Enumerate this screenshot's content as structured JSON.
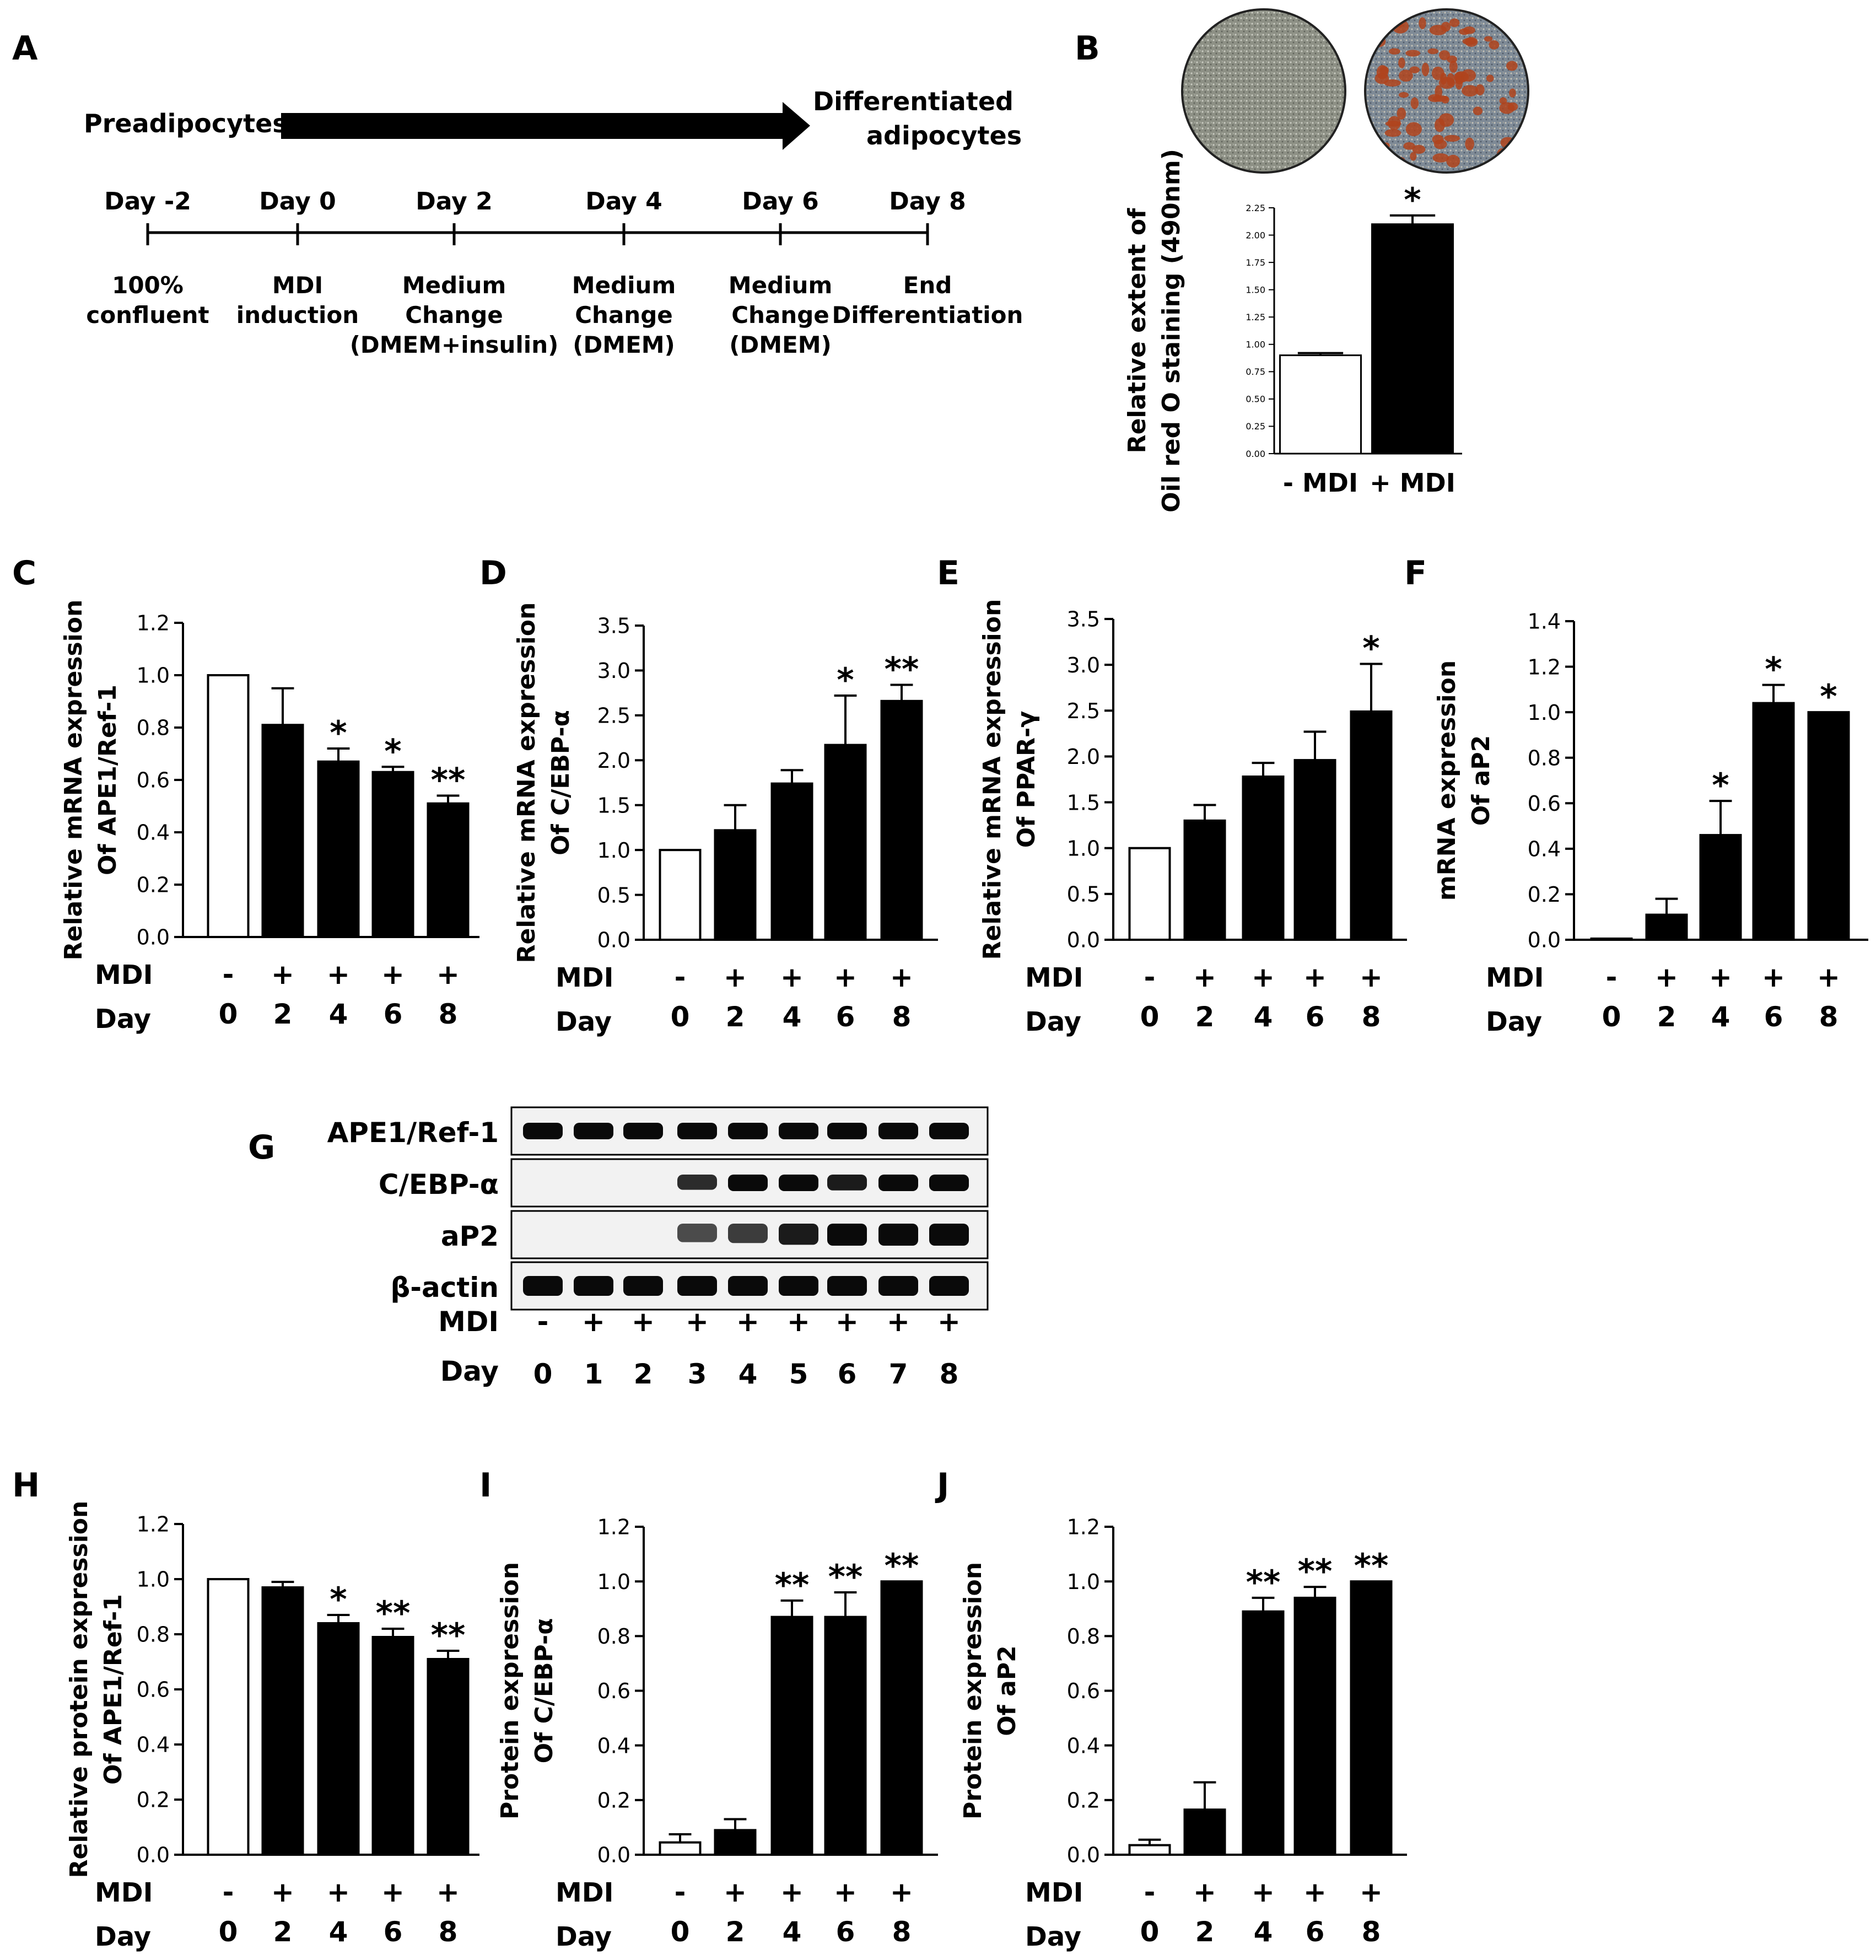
{
  "figure": {
    "panel_a": {
      "letter": "A",
      "arrow_start": "Preadipocytes",
      "arrow_end": [
        "Differentiated",
        "adipocytes"
      ],
      "timeline": [
        {
          "day": "Day -2",
          "lines": [
            "100%",
            "confluent"
          ]
        },
        {
          "day": "Day 0",
          "lines": [
            "MDI",
            "induction"
          ]
        },
        {
          "day": "Day 2",
          "lines": [
            "Medium",
            "Change",
            "(DMEM+insulin)"
          ]
        },
        {
          "day": "Day 4",
          "lines": [
            "Medium",
            "Change",
            "(DMEM)"
          ]
        },
        {
          "day": "Day 6",
          "lines": [
            "Medium",
            "Change",
            "(DMEM)"
          ]
        },
        {
          "day": "Day 8",
          "lines": [
            "End",
            "Differentiation"
          ]
        }
      ]
    },
    "panel_g": {
      "letter": "G",
      "rows": [
        "APE1/Ref-1",
        "C/EBP-α",
        "aP2",
        "β-actin"
      ],
      "mdi_label": "MDI",
      "day_label": "Day",
      "mdi": [
        "-",
        "+",
        "+",
        "+",
        "+",
        "+",
        "+",
        "+",
        "+"
      ],
      "days": [
        "0",
        "1",
        "2",
        "3",
        "4",
        "5",
        "6",
        "7",
        "8"
      ],
      "band_intensity": [
        [
          1,
          1,
          1,
          1,
          1,
          1,
          1,
          1,
          1
        ],
        [
          0,
          0,
          0,
          0.8,
          1,
          1,
          0.9,
          1,
          1
        ],
        [
          0,
          0,
          0,
          0.6,
          0.7,
          0.9,
          1,
          1,
          1
        ],
        [
          1,
          1,
          1,
          1,
          1,
          1,
          1,
          1,
          1
        ]
      ]
    },
    "panel_b_images": {
      "colors": {
        "minus_bg": "#8f9186",
        "plus_bg": "#8c8a8a",
        "stain": "#b0431c"
      }
    },
    "colors": {
      "bar_fill": "#000000",
      "control_fill": "#ffffff",
      "axis": "#000000"
    }
  },
  "chart_data": [
    {
      "id": "B",
      "type": "bar",
      "ylabel": [
        "Relative extent of",
        "Oil red O staining (490nm)"
      ],
      "categories": [
        "- MDI",
        "+ MDI"
      ],
      "values": [
        0.9,
        2.1
      ],
      "errors": [
        0.02,
        0.08
      ],
      "significance": [
        "",
        "*"
      ],
      "ylim": [
        0,
        2.25
      ],
      "yticks": [
        "0.00",
        "0.25",
        "0.50",
        "0.75",
        "1.00",
        "1.25",
        "1.50",
        "1.75",
        "2.00",
        "2.25"
      ],
      "ytick_values": [
        0,
        0.25,
        0.5,
        0.75,
        1.0,
        1.25,
        1.5,
        1.75,
        2.0,
        2.25
      ],
      "first_bar_white": true
    },
    {
      "id": "C",
      "type": "bar",
      "ylabel": [
        "Relative mRNA expression",
        "Of APE1/Ref-1"
      ],
      "mdi": [
        "-",
        "+",
        "+",
        "+",
        "+"
      ],
      "days": [
        "0",
        "2",
        "4",
        "6",
        "8"
      ],
      "values": [
        1.0,
        0.81,
        0.67,
        0.63,
        0.51
      ],
      "errors": [
        0,
        0.14,
        0.05,
        0.02,
        0.03
      ],
      "significance": [
        "",
        "",
        "*",
        "*",
        "**"
      ],
      "ylim": [
        0,
        1.2
      ],
      "yticks": [
        "0.0",
        "0.2",
        "0.4",
        "0.6",
        "0.8",
        "1.0",
        "1.2"
      ],
      "ytick_values": [
        0,
        0.2,
        0.4,
        0.6,
        0.8,
        1.0,
        1.2
      ],
      "first_bar_white": true
    },
    {
      "id": "D",
      "type": "bar",
      "ylabel": [
        "Relative mRNA expression",
        "Of C/EBP-α"
      ],
      "mdi": [
        "-",
        "+",
        "+",
        "+",
        "+"
      ],
      "days": [
        "0",
        "2",
        "4",
        "6",
        "8"
      ],
      "values": [
        1.0,
        1.22,
        1.74,
        2.17,
        2.66
      ],
      "errors": [
        0,
        0.28,
        0.15,
        0.55,
        0.18
      ],
      "significance": [
        "",
        "",
        "",
        "*",
        "**"
      ],
      "ylim": [
        0,
        3.5
      ],
      "yticks": [
        "0.0",
        "0.5",
        "1.0",
        "1.5",
        "2.0",
        "2.5",
        "3.0",
        "3.5"
      ],
      "ytick_values": [
        0,
        0.5,
        1.0,
        1.5,
        2.0,
        2.5,
        3.0,
        3.5
      ],
      "first_bar_white": true
    },
    {
      "id": "E",
      "type": "bar",
      "ylabel": [
        "Relative mRNA expression",
        "Of PPAR-γ"
      ],
      "mdi": [
        "-",
        "+",
        "+",
        "+",
        "+"
      ],
      "days": [
        "0",
        "2",
        "4",
        "6",
        "8"
      ],
      "values": [
        1.0,
        1.3,
        1.78,
        1.96,
        2.49
      ],
      "errors": [
        0,
        0.17,
        0.15,
        0.31,
        0.52
      ],
      "significance": [
        "",
        "",
        "",
        "",
        "*"
      ],
      "ylim": [
        0,
        3.5
      ],
      "yticks": [
        "0.0",
        "0.5",
        "1.0",
        "1.5",
        "2.0",
        "2.5",
        "3.0",
        "3.5"
      ],
      "ytick_values": [
        0,
        0.5,
        1.0,
        1.5,
        2.0,
        2.5,
        3.0,
        3.5
      ],
      "first_bar_white": true
    },
    {
      "id": "F",
      "type": "bar",
      "ylabel": [
        "mRNA expression",
        "Of aP2"
      ],
      "mdi": [
        "-",
        "+",
        "+",
        "+",
        "+"
      ],
      "days": [
        "0",
        "2",
        "4",
        "6",
        "8"
      ],
      "values": [
        0.005,
        0.11,
        0.46,
        1.04,
        1.0
      ],
      "errors": [
        0,
        0.07,
        0.15,
        0.08,
        0
      ],
      "significance": [
        "",
        "",
        "*",
        "*",
        "*"
      ],
      "ylim": [
        0,
        1.4
      ],
      "yticks": [
        "0.0",
        "0.2",
        "0.4",
        "0.6",
        "0.8",
        "1.0",
        "1.2",
        "1.4"
      ],
      "ytick_values": [
        0,
        0.2,
        0.4,
        0.6,
        0.8,
        1.0,
        1.2,
        1.4
      ],
      "first_bar_white": true
    },
    {
      "id": "H",
      "type": "bar",
      "ylabel": [
        "Relative protein expression",
        "Of APE1/Ref-1"
      ],
      "mdi": [
        "-",
        "+",
        "+",
        "+",
        "+"
      ],
      "days": [
        "0",
        "2",
        "4",
        "6",
        "8"
      ],
      "values": [
        1.0,
        0.97,
        0.84,
        0.79,
        0.71
      ],
      "errors": [
        0,
        0.02,
        0.03,
        0.03,
        0.03
      ],
      "significance": [
        "",
        "",
        "*",
        "**",
        "**"
      ],
      "ylim": [
        0,
        1.2
      ],
      "yticks": [
        "0.0",
        "0.2",
        "0.4",
        "0.6",
        "0.8",
        "1.0",
        "1.2"
      ],
      "ytick_values": [
        0,
        0.2,
        0.4,
        0.6,
        0.8,
        1.0,
        1.2
      ],
      "first_bar_white": true
    },
    {
      "id": "I",
      "type": "bar",
      "ylabel": [
        "Protein expression",
        "Of C/EBP-α"
      ],
      "mdi": [
        "-",
        "+",
        "+",
        "+",
        "+"
      ],
      "days": [
        "0",
        "2",
        "4",
        "6",
        "8"
      ],
      "values": [
        0.045,
        0.09,
        0.87,
        0.87,
        1.0
      ],
      "errors": [
        0.03,
        0.04,
        0.06,
        0.09,
        0
      ],
      "significance": [
        "",
        "",
        "**",
        "**",
        "**"
      ],
      "ylim": [
        0,
        1.2
      ],
      "yticks": [
        "0.0",
        "0.2",
        "0.4",
        "0.6",
        "0.8",
        "1.0",
        "1.2"
      ],
      "ytick_values": [
        0,
        0.2,
        0.4,
        0.6,
        0.8,
        1.0,
        1.2
      ],
      "first_bar_white": true
    },
    {
      "id": "J",
      "type": "bar",
      "ylabel": [
        "Protein expression",
        "Of aP2"
      ],
      "mdi": [
        "-",
        "+",
        "+",
        "+",
        "+"
      ],
      "days": [
        "0",
        "2",
        "4",
        "6",
        "8"
      ],
      "values": [
        0.035,
        0.165,
        0.89,
        0.94,
        1.0
      ],
      "errors": [
        0.02,
        0.1,
        0.05,
        0.04,
        0
      ],
      "significance": [
        "",
        "",
        "**",
        "**",
        "**"
      ],
      "ylim": [
        0,
        1.2
      ],
      "yticks": [
        "0.0",
        "0.2",
        "0.4",
        "0.6",
        "0.8",
        "1.0",
        "1.2"
      ],
      "ytick_values": [
        0,
        0.2,
        0.4,
        0.6,
        0.8,
        1.0,
        1.2
      ],
      "first_bar_white": true
    }
  ],
  "labels": {
    "mdi": "MDI",
    "day": "Day"
  }
}
